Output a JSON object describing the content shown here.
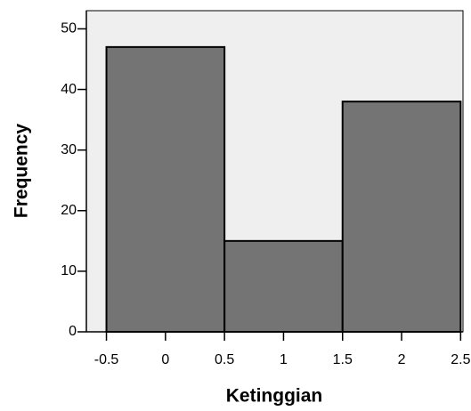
{
  "chart_data": {
    "type": "histogram",
    "x_label": "Ketinggian",
    "y_label": "Frequency",
    "bins": [
      -0.5,
      0.5,
      1.5,
      2.5
    ],
    "counts": [
      47,
      15,
      38
    ],
    "color": "#666666",
    "xlim": [
      -0.67,
      2.52
    ],
    "xticks": [
      -0.5,
      0,
      0.5,
      1,
      1.5,
      2,
      2.5
    ],
    "ylim": [
      0,
      53
    ],
    "yticks": [
      0,
      10,
      20,
      30,
      40,
      50
    ]
  }
}
